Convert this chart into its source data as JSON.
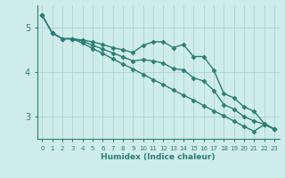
{
  "xlabel": "Humidex (Indice chaleur)",
  "x": [
    0,
    1,
    2,
    3,
    4,
    5,
    6,
    7,
    8,
    9,
    10,
    11,
    12,
    13,
    14,
    15,
    16,
    17,
    18,
    19,
    20,
    21,
    22,
    23
  ],
  "line1": [
    5.28,
    4.88,
    4.75,
    4.75,
    4.72,
    4.68,
    4.62,
    4.55,
    4.5,
    4.44,
    4.6,
    4.68,
    4.68,
    4.55,
    4.62,
    4.35,
    4.35,
    4.05,
    3.52,
    3.42,
    3.22,
    3.12,
    2.85,
    2.72
  ],
  "line2": [
    5.28,
    4.88,
    4.75,
    4.75,
    4.65,
    4.53,
    4.42,
    4.3,
    4.18,
    4.07,
    3.95,
    3.83,
    3.72,
    3.6,
    3.48,
    3.37,
    3.25,
    3.13,
    3.02,
    2.9,
    2.78,
    2.67,
    2.82,
    2.72
  ],
  "line3": [
    5.28,
    4.88,
    4.75,
    4.75,
    4.7,
    4.6,
    4.52,
    4.43,
    4.34,
    4.25,
    4.28,
    4.25,
    4.2,
    4.08,
    4.05,
    3.87,
    3.8,
    3.59,
    3.27,
    3.17,
    3.0,
    2.9,
    2.83,
    2.72
  ],
  "line_color": "#2d7d74",
  "bg_color": "#ceecea",
  "grid_color": "#aed4d0",
  "ylim": [
    2.5,
    5.5
  ],
  "xlim": [
    -0.5,
    23.5
  ],
  "yticks": [
    3,
    4,
    5
  ],
  "xticks": [
    0,
    1,
    2,
    3,
    4,
    5,
    6,
    7,
    8,
    9,
    10,
    11,
    12,
    13,
    14,
    15,
    16,
    17,
    18,
    19,
    20,
    21,
    22,
    23
  ],
  "marker": "D",
  "markersize": 2.5,
  "linewidth": 1.0
}
